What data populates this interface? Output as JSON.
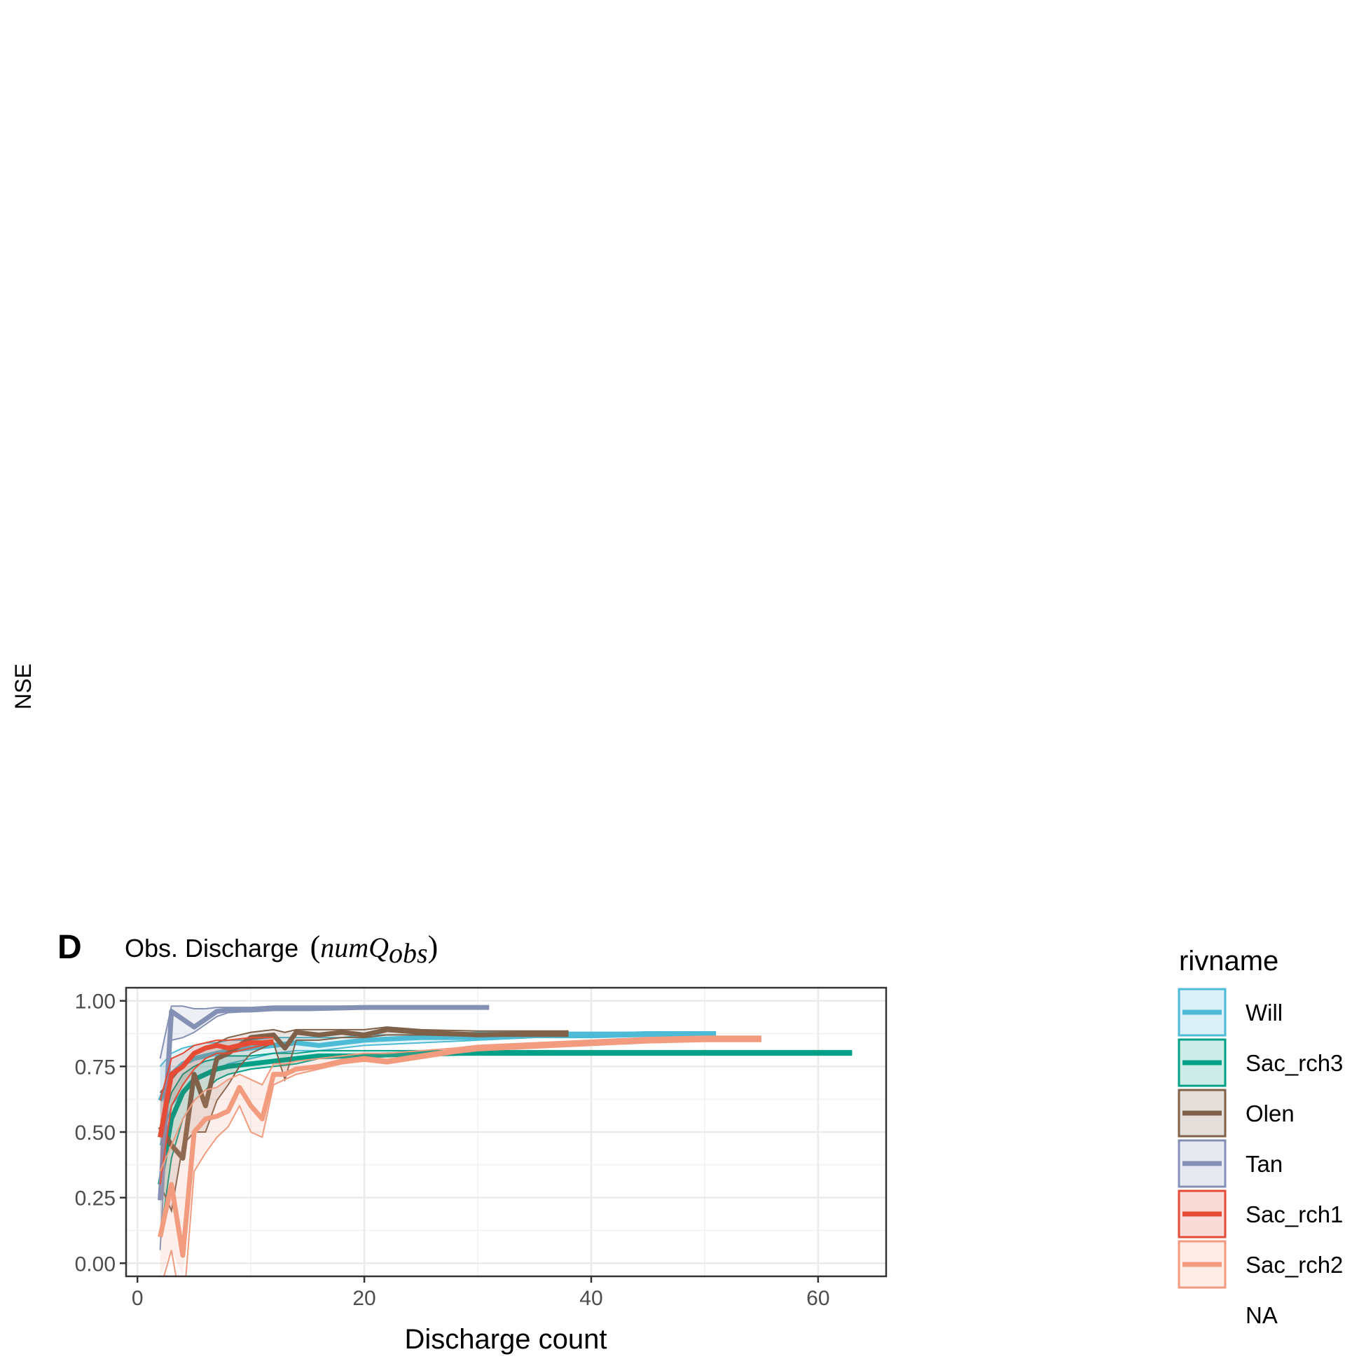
{
  "chart_data": {
    "type": "line",
    "panel_letter": "D",
    "title_text": "Obs. Discharge",
    "title_math_main": "numQ",
    "title_math_sub": "obs",
    "ylabel": "NSE",
    "xlabel": "Discharge count",
    "xlim": [
      -1,
      66
    ],
    "ylim": [
      -0.05,
      1.05
    ],
    "x_ticks": [
      0,
      20,
      40,
      60
    ],
    "x_tick_labels": [
      "0",
      "20",
      "40",
      "60"
    ],
    "y_ticks": [
      0,
      0.25,
      0.5,
      0.75,
      1.0
    ],
    "y_tick_labels": [
      "0.00",
      "0.25",
      "0.50",
      "0.75",
      "1.00"
    ],
    "grid": true,
    "legend": {
      "title": "rivname",
      "position": "right",
      "na_label": "NA"
    },
    "series": [
      {
        "name": "Will",
        "color": "#4DBBD5",
        "x": [
          2,
          3,
          4,
          5,
          6,
          7,
          8,
          10,
          12,
          14,
          16,
          18,
          20,
          25,
          30,
          35,
          40,
          45,
          51
        ],
        "y": [
          0.62,
          0.72,
          0.76,
          0.78,
          0.79,
          0.8,
          0.81,
          0.82,
          0.83,
          0.84,
          0.83,
          0.84,
          0.85,
          0.86,
          0.86,
          0.87,
          0.87,
          0.875,
          0.875
        ],
        "lower": [
          0.45,
          0.6,
          0.66,
          0.7,
          0.72,
          0.74,
          0.76,
          0.78,
          0.8,
          0.81,
          0.81,
          0.82,
          0.83,
          0.84,
          0.85,
          0.86,
          0.86,
          0.865,
          0.865
        ],
        "upper": [
          0.75,
          0.8,
          0.82,
          0.83,
          0.84,
          0.84,
          0.85,
          0.85,
          0.86,
          0.86,
          0.86,
          0.86,
          0.87,
          0.87,
          0.88,
          0.88,
          0.88,
          0.88,
          0.88
        ]
      },
      {
        "name": "Sac_rch3",
        "color": "#00A087",
        "x": [
          2,
          3,
          4,
          5,
          6,
          7,
          8,
          10,
          12,
          14,
          16,
          20,
          25,
          30,
          35,
          40,
          50,
          63
        ],
        "y": [
          0.3,
          0.55,
          0.65,
          0.7,
          0.72,
          0.74,
          0.75,
          0.76,
          0.77,
          0.78,
          0.79,
          0.79,
          0.8,
          0.8,
          0.8,
          0.8,
          0.8,
          0.8
        ],
        "lower": [
          0.1,
          0.4,
          0.55,
          0.62,
          0.66,
          0.7,
          0.72,
          0.74,
          0.75,
          0.76,
          0.78,
          0.785,
          0.79,
          0.795,
          0.795,
          0.795,
          0.795,
          0.795
        ],
        "upper": [
          0.5,
          0.65,
          0.72,
          0.75,
          0.77,
          0.78,
          0.79,
          0.79,
          0.8,
          0.8,
          0.81,
          0.81,
          0.81,
          0.81,
          0.81,
          0.81,
          0.81,
          0.81
        ]
      },
      {
        "name": "Olen",
        "color": "#7E6148",
        "x": [
          2,
          3,
          4,
          5,
          6,
          7,
          8,
          9,
          10,
          12,
          13,
          14,
          16,
          18,
          20,
          22,
          25,
          30,
          35,
          38
        ],
        "y": [
          0.52,
          0.45,
          0.4,
          0.72,
          0.6,
          0.78,
          0.8,
          0.83,
          0.86,
          0.87,
          0.82,
          0.88,
          0.87,
          0.88,
          0.87,
          0.89,
          0.88,
          0.87,
          0.875,
          0.875
        ],
        "lower": [
          0.3,
          0.2,
          0.45,
          0.5,
          0.5,
          0.62,
          0.68,
          0.75,
          0.8,
          0.84,
          0.7,
          0.85,
          0.85,
          0.86,
          0.86,
          0.87,
          0.87,
          0.865,
          0.865,
          0.865
        ],
        "upper": [
          0.65,
          0.7,
          0.75,
          0.8,
          0.82,
          0.84,
          0.86,
          0.87,
          0.88,
          0.89,
          0.88,
          0.89,
          0.89,
          0.89,
          0.89,
          0.9,
          0.89,
          0.885,
          0.885,
          0.885
        ]
      },
      {
        "name": "Tan",
        "color": "#8491B4",
        "x": [
          2,
          3,
          4,
          5,
          6,
          7,
          8,
          10,
          12,
          15,
          20,
          25,
          31
        ],
        "y": [
          0.24,
          0.96,
          0.93,
          0.9,
          0.93,
          0.96,
          0.965,
          0.965,
          0.97,
          0.97,
          0.975,
          0.975,
          0.975
        ],
        "lower": [
          0.05,
          0.85,
          0.86,
          0.88,
          0.91,
          0.94,
          0.955,
          0.96,
          0.965,
          0.965,
          0.97,
          0.97,
          0.97
        ],
        "upper": [
          0.78,
          0.98,
          0.98,
          0.97,
          0.97,
          0.975,
          0.975,
          0.975,
          0.98,
          0.98,
          0.98,
          0.98,
          0.98
        ]
      },
      {
        "name": "Sac_rch1",
        "color": "#E64B35",
        "x": [
          2,
          3,
          4,
          5,
          6,
          7,
          8,
          9,
          10,
          11,
          12
        ],
        "y": [
          0.48,
          0.72,
          0.75,
          0.8,
          0.82,
          0.83,
          0.82,
          0.83,
          0.84,
          0.84,
          0.845
        ],
        "lower": [
          0.3,
          0.6,
          0.68,
          0.74,
          0.78,
          0.8,
          0.8,
          0.81,
          0.82,
          0.83,
          0.835
        ],
        "upper": [
          0.62,
          0.78,
          0.8,
          0.83,
          0.84,
          0.85,
          0.85,
          0.855,
          0.86,
          0.86,
          0.86
        ]
      },
      {
        "name": "Sac_rch2",
        "color": "#F39B7F",
        "x": [
          2,
          3,
          4,
          5,
          6,
          7,
          8,
          9,
          10,
          11,
          12,
          13,
          14,
          16,
          18,
          20,
          22,
          25,
          28,
          30,
          35,
          40,
          45,
          50,
          55
        ],
        "y": [
          0.1,
          0.3,
          0.03,
          0.5,
          0.55,
          0.56,
          0.58,
          0.67,
          0.6,
          0.55,
          0.72,
          0.72,
          0.74,
          0.75,
          0.77,
          0.78,
          0.77,
          0.79,
          0.81,
          0.82,
          0.83,
          0.84,
          0.85,
          0.855,
          0.855
        ],
        "lower": [
          -0.1,
          0.05,
          -0.2,
          0.35,
          0.42,
          0.48,
          0.52,
          0.6,
          0.5,
          0.48,
          0.68,
          0.7,
          0.72,
          0.74,
          0.76,
          0.77,
          0.76,
          0.78,
          0.8,
          0.81,
          0.82,
          0.83,
          0.84,
          0.845,
          0.845
        ],
        "upper": [
          0.35,
          0.45,
          0.55,
          0.62,
          0.66,
          0.67,
          0.7,
          0.72,
          0.7,
          0.68,
          0.76,
          0.76,
          0.77,
          0.78,
          0.79,
          0.8,
          0.8,
          0.81,
          0.82,
          0.83,
          0.84,
          0.85,
          0.86,
          0.865,
          0.865
        ]
      }
    ]
  }
}
